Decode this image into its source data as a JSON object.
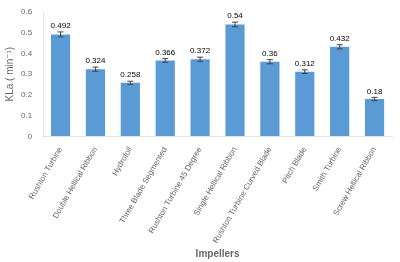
{
  "chart_data": {
    "type": "bar",
    "categories": [
      "Rushton Turbine",
      "Double Hellical Ribbon",
      "Hydrofoil",
      "Three Blade Segmented",
      "Rushton Turbine 45 Degree",
      "Single Hellical Ribbon",
      "Rushton Turbine Curved Blade",
      "Pitch Blade",
      "Smith Turbine",
      "Screw Hellical Ribbon"
    ],
    "values": [
      0.492,
      0.324,
      0.258,
      0.366,
      0.372,
      0.54,
      0.36,
      0.312,
      0.432,
      0.18
    ],
    "errors": [
      0.012,
      0.01,
      0.008,
      0.009,
      0.01,
      0.011,
      0.01,
      0.009,
      0.01,
      0.008
    ],
    "color": "#5B9BD5",
    "xlabel": "Impellers",
    "ylabel": "KLa ( min⁻¹)",
    "ylim": [
      0,
      0.6
    ],
    "yticks": [
      0,
      0.1,
      0.2,
      0.3,
      0.4,
      0.5,
      0.6
    ],
    "grid": false,
    "data_labels": true
  }
}
